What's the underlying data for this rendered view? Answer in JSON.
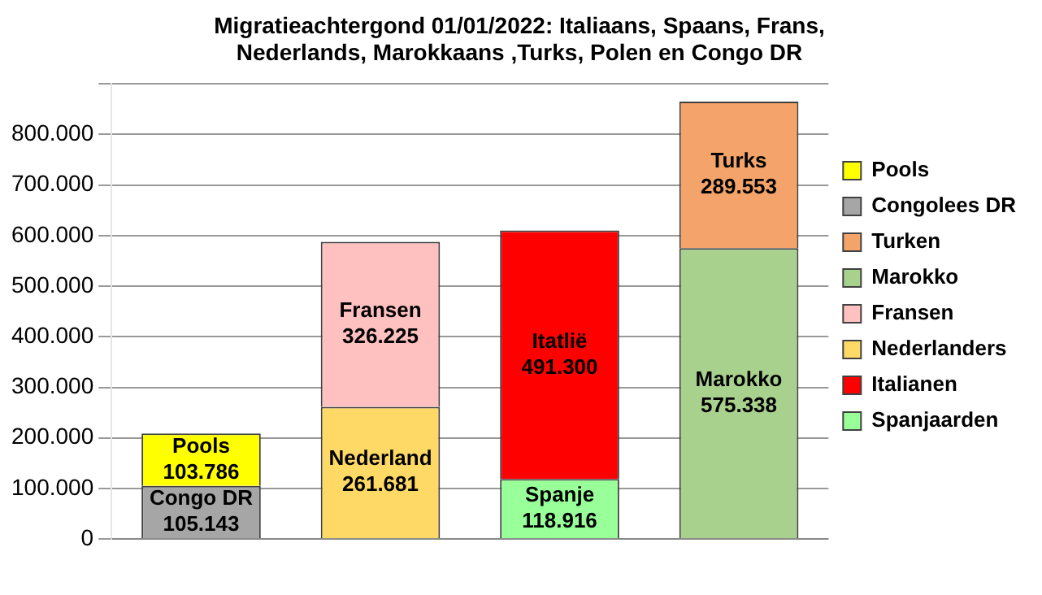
{
  "chart_data": {
    "type": "bar",
    "stacked": true,
    "title": "Migratieachtergond 01/01/2022: Italiaans, Spaans, Frans, Nederlands, Marokkaans ,Turks, Polen en Congo DR",
    "categories": [
      null,
      null,
      null,
      null
    ],
    "series": [
      {
        "name": "Spanjaarden",
        "color": "#99ff99",
        "values": [
          null,
          null,
          118916,
          null
        ],
        "value_labels": [
          null,
          null,
          "Spanje\n118.916",
          null
        ]
      },
      {
        "name": "Italianen",
        "color": "#ff0000",
        "values": [
          null,
          null,
          491300,
          null
        ],
        "value_labels": [
          null,
          null,
          "Itatlië\n491.300",
          null
        ]
      },
      {
        "name": "Nederlanders",
        "color": "#ffd966",
        "values": [
          null,
          261681,
          null,
          null
        ],
        "value_labels": [
          null,
          "Nederland\n261.681",
          null,
          null
        ]
      },
      {
        "name": "Fransen",
        "color": "#ffc0c0",
        "values": [
          null,
          326225,
          null,
          null
        ],
        "value_labels": [
          null,
          "Fransen\n326.225",
          null,
          null
        ]
      },
      {
        "name": "Marokko",
        "color": "#a9d18e",
        "values": [
          null,
          null,
          null,
          575338
        ],
        "value_labels": [
          null,
          null,
          null,
          "Marokko\n575.338"
        ]
      },
      {
        "name": "Turken",
        "color": "#f4a46a",
        "values": [
          null,
          null,
          null,
          289553
        ],
        "value_labels": [
          null,
          null,
          null,
          "Turks\n289.553"
        ]
      },
      {
        "name": "Congolees DR",
        "color": "#a6a6a6",
        "values": [
          105143,
          null,
          null,
          null
        ],
        "value_labels": [
          "Congo DR\n105.143",
          null,
          null,
          null
        ]
      },
      {
        "name": "Pools",
        "color": "#ffff00",
        "values": [
          103786,
          null,
          null,
          null
        ],
        "value_labels": [
          "Pools\n103.786",
          null,
          null,
          null
        ]
      }
    ],
    "ylim": [
      0,
      900000
    ],
    "yticks": [
      0,
      {
        "value": 100000,
        "label": "100.000"
      },
      {
        "value": 200000,
        "label": "200.000"
      },
      {
        "value": 300000,
        "label": "300.000"
      },
      {
        "value": 400000,
        "label": "400.000"
      },
      {
        "value": 500000,
        "label": "500.000"
      },
      {
        "value": 600000,
        "label": "600.000"
      },
      {
        "value": 700000,
        "label": "700.000"
      },
      {
        "value": 800000,
        "label": "800.000"
      },
      {
        "value": 900000,
        "label": null
      }
    ],
    "grid": "y",
    "legend": "right"
  }
}
